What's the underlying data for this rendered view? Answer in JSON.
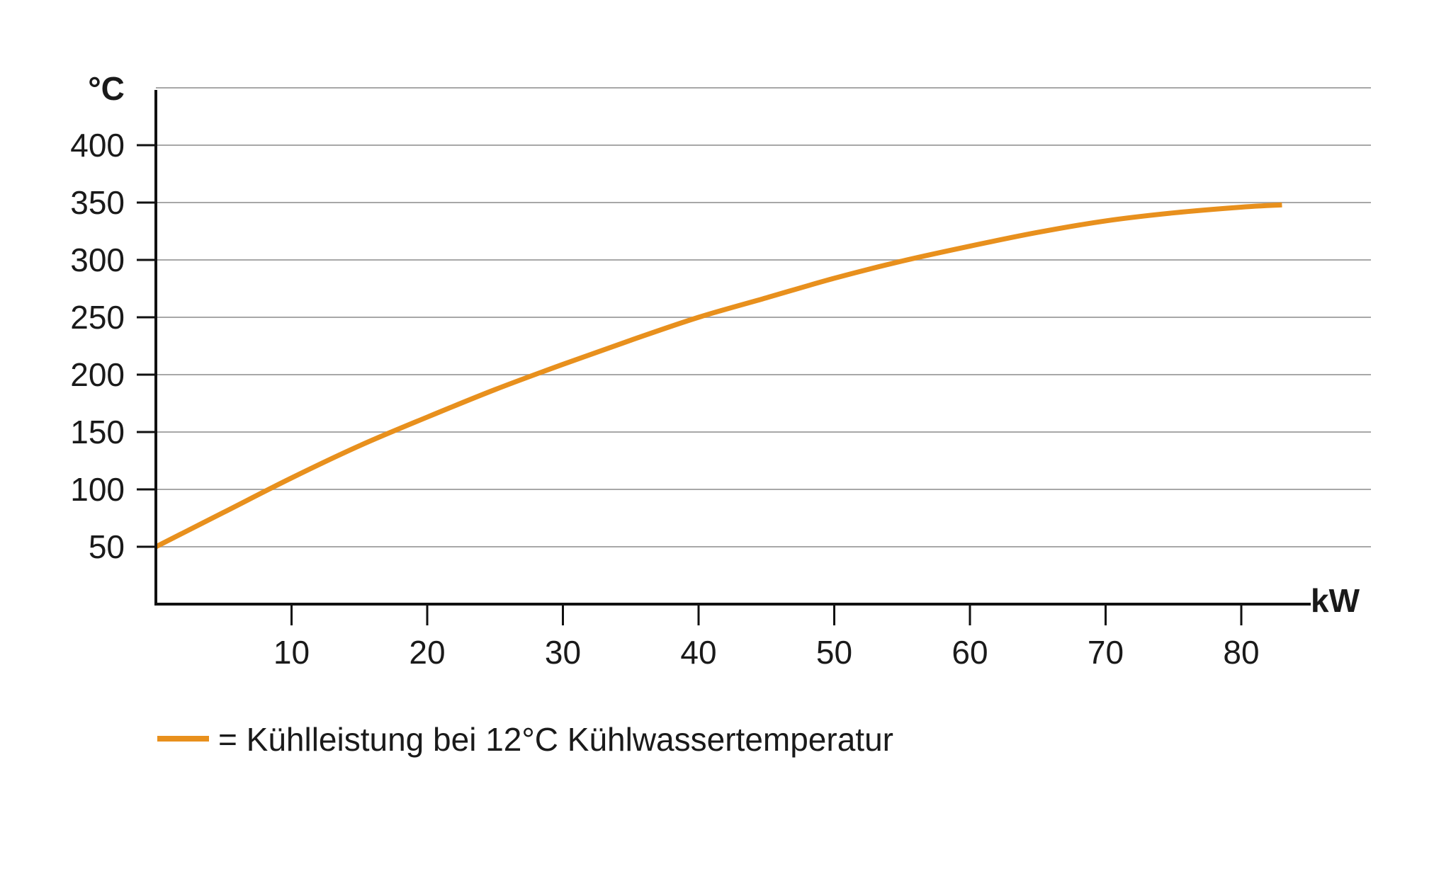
{
  "chart_data": {
    "type": "line",
    "title": "",
    "xlabel": "kW",
    "ylabel": "°C",
    "xlim": [
      0,
      90
    ],
    "ylim": [
      0,
      450
    ],
    "x_ticks": [
      10,
      20,
      30,
      40,
      50,
      60,
      70,
      80
    ],
    "y_ticks": [
      50,
      100,
      150,
      200,
      250,
      300,
      350,
      400
    ],
    "grid": true,
    "legend_position": "bottom-left",
    "series": [
      {
        "name": "= Kühlleistung bei 12°C Kühlwassertemperatur",
        "color": "#e8901d",
        "x": [
          0,
          5,
          10,
          15,
          20,
          25,
          30,
          35,
          40,
          45,
          50,
          55,
          60,
          65,
          70,
          75,
          80,
          83
        ],
        "y": [
          50,
          80,
          110,
          138,
          163,
          187,
          209,
          230,
          250,
          267,
          284,
          299,
          312,
          324,
          334,
          341,
          346,
          348
        ]
      }
    ]
  }
}
